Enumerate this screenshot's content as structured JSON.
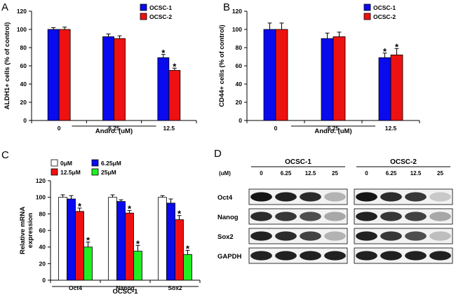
{
  "panels": {
    "A": "A",
    "B": "B",
    "C": "C",
    "D": "D"
  },
  "colors": {
    "blue": "#0a0aee",
    "red": "#ee1111",
    "green": "#22ee22",
    "white": "#ffffff",
    "black": "#000000"
  },
  "chart_data": [
    {
      "id": "A",
      "type": "bar",
      "categories": [
        "0",
        "6.25",
        "12.5"
      ],
      "series": [
        {
          "name": "OCSC-1",
          "color": "#0a0aee",
          "values": [
            100,
            92,
            69
          ],
          "errors": [
            2,
            3,
            3.5
          ]
        },
        {
          "name": "OCSC-2",
          "color": "#ee1111",
          "values": [
            100,
            90,
            55
          ],
          "errors": [
            2.5,
            3,
            2.5
          ]
        }
      ],
      "significance": [
        [
          false,
          false,
          true
        ],
        [
          false,
          false,
          true
        ]
      ],
      "star_label": "*",
      "xlabel": "Andro. (uM)",
      "ylabel": "ALDH1+ cells (% of control)",
      "ylim": [
        0,
        120
      ],
      "yticks": [
        "0",
        "20",
        "40",
        "60",
        "80",
        "100",
        "120"
      ],
      "legend_position": "top-right"
    },
    {
      "id": "B",
      "type": "bar",
      "categories": [
        "0",
        "6.25",
        "12.5"
      ],
      "series": [
        {
          "name": "OCSC-1",
          "color": "#0a0aee",
          "values": [
            100,
            90,
            69
          ],
          "errors": [
            7,
            6,
            5
          ]
        },
        {
          "name": "OCSC-2",
          "color": "#ee1111",
          "values": [
            100,
            92,
            72
          ],
          "errors": [
            7,
            5,
            7
          ]
        }
      ],
      "significance": [
        [
          false,
          false,
          true
        ],
        [
          false,
          false,
          true
        ]
      ],
      "star_label": "*",
      "xlabel": "Andro. (uM)",
      "ylabel": "CD44+ cells (% of control)",
      "ylim": [
        0,
        120
      ],
      "yticks": [
        "0",
        "20",
        "40",
        "60",
        "80",
        "100",
        "120"
      ],
      "legend_position": "top-right"
    },
    {
      "id": "C",
      "type": "bar",
      "categories": [
        "Oct4",
        "Nanog",
        "Sox2"
      ],
      "series": [
        {
          "name": "0μM",
          "color": "#ffffff",
          "values": [
            100,
            100,
            100
          ],
          "errors": [
            3,
            3,
            2
          ]
        },
        {
          "name": "6.25μM",
          "color": "#0a0aee",
          "values": [
            98,
            95,
            93
          ],
          "errors": [
            4,
            2,
            5
          ]
        },
        {
          "name": "12.5μM",
          "color": "#ee1111",
          "values": [
            83,
            81,
            73
          ],
          "errors": [
            4,
            3,
            5
          ]
        },
        {
          "name": "25μM",
          "color": "#22ee22",
          "values": [
            40,
            35,
            31
          ],
          "errors": [
            6,
            7,
            5
          ]
        }
      ],
      "significance": [
        [
          false,
          false,
          false
        ],
        [
          false,
          false,
          false
        ],
        [
          true,
          true,
          true
        ],
        [
          true,
          true,
          true
        ]
      ],
      "star_label": "*",
      "xlabel": "OCSC-1",
      "ylabel": "Relative mRNA\nexpression",
      "ylim": [
        0,
        120
      ],
      "yticks": [
        "0",
        "20",
        "40",
        "60",
        "80",
        "100",
        "120"
      ],
      "legend_position": "top"
    }
  ],
  "blot": {
    "groups": [
      "OCSC-1",
      "OCSC-2"
    ],
    "unit_label": "(uM)",
    "concentrations": [
      "0",
      "6.25",
      "12.5",
      "25"
    ],
    "rows": [
      {
        "label": "Oct4",
        "intensity": [
          [
            0.95,
            0.9,
            0.85,
            0.25
          ],
          [
            0.95,
            0.85,
            0.8,
            0.15
          ]
        ]
      },
      {
        "label": "Nanog",
        "intensity": [
          [
            0.85,
            0.8,
            0.7,
            0.3
          ],
          [
            0.9,
            0.8,
            0.75,
            0.3
          ]
        ]
      },
      {
        "label": "Sox2",
        "intensity": [
          [
            0.9,
            0.85,
            0.75,
            0.25
          ],
          [
            0.9,
            0.8,
            0.7,
            0.2
          ]
        ]
      },
      {
        "label": "GAPDH",
        "intensity": [
          [
            0.9,
            0.9,
            0.9,
            0.9
          ],
          [
            0.9,
            0.9,
            0.9,
            0.9
          ]
        ]
      }
    ]
  }
}
